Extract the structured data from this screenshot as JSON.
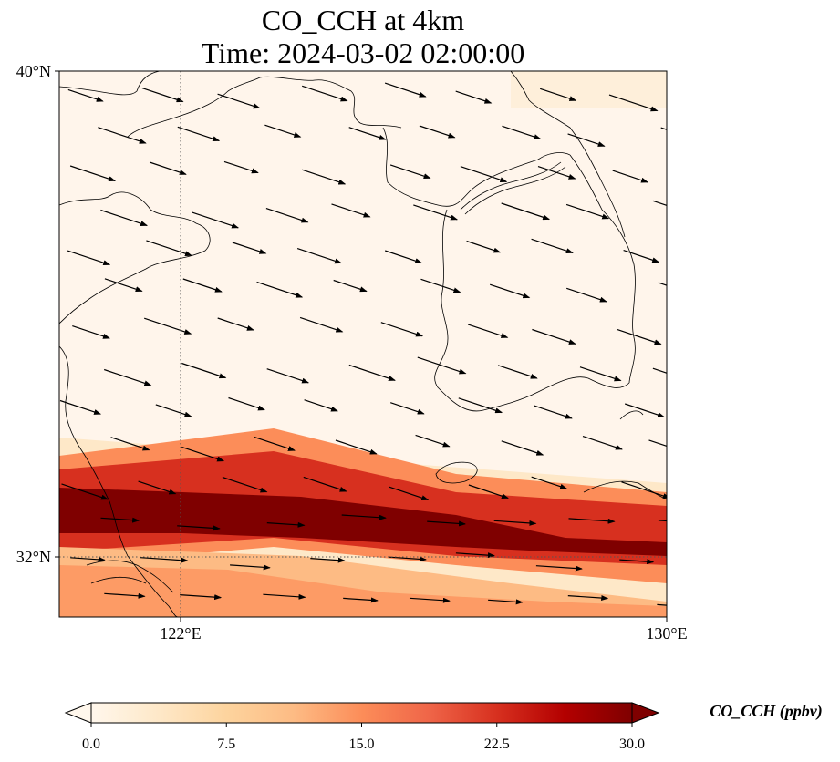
{
  "title_line1": "CO_CCH at 4km",
  "title_line2": "Time: 2024-03-02 02:00:00",
  "map": {
    "lon_range": [
      119.6,
      130.0
    ],
    "lat_range": [
      30.9,
      40.0
    ],
    "lat_ticks": [
      {
        "value": 40,
        "label": "40°N"
      },
      {
        "value": 32,
        "label": "32°N"
      }
    ],
    "lon_ticks": [
      {
        "value": 122,
        "label": "122°E"
      },
      {
        "value": 130,
        "label": "130°E"
      }
    ],
    "gridlines": {
      "lat": [
        32
      ],
      "lon": [
        122
      ],
      "style": "dotted"
    },
    "background_color": "#fff5eb",
    "plume_center_color": "#7f0000",
    "plume_edge_color": "#ef6548"
  },
  "colorbar": {
    "label": "CO_CCH (ppbv)",
    "min": 0.0,
    "max": 30.0,
    "ticks": [
      "0.0",
      "7.5",
      "15.0",
      "22.5",
      "30.0"
    ],
    "colormap": "OrRd",
    "stops": [
      "#fff7ec",
      "#fee8c8",
      "#fdd49e",
      "#fdbb84",
      "#fc8d59",
      "#ef6548",
      "#d7301f",
      "#b30000",
      "#7f0000"
    ],
    "extend": "both"
  },
  "wind_vectors": {
    "direction": "toward east-southeast",
    "mean_u": 4.5,
    "mean_v": -1.5
  }
}
